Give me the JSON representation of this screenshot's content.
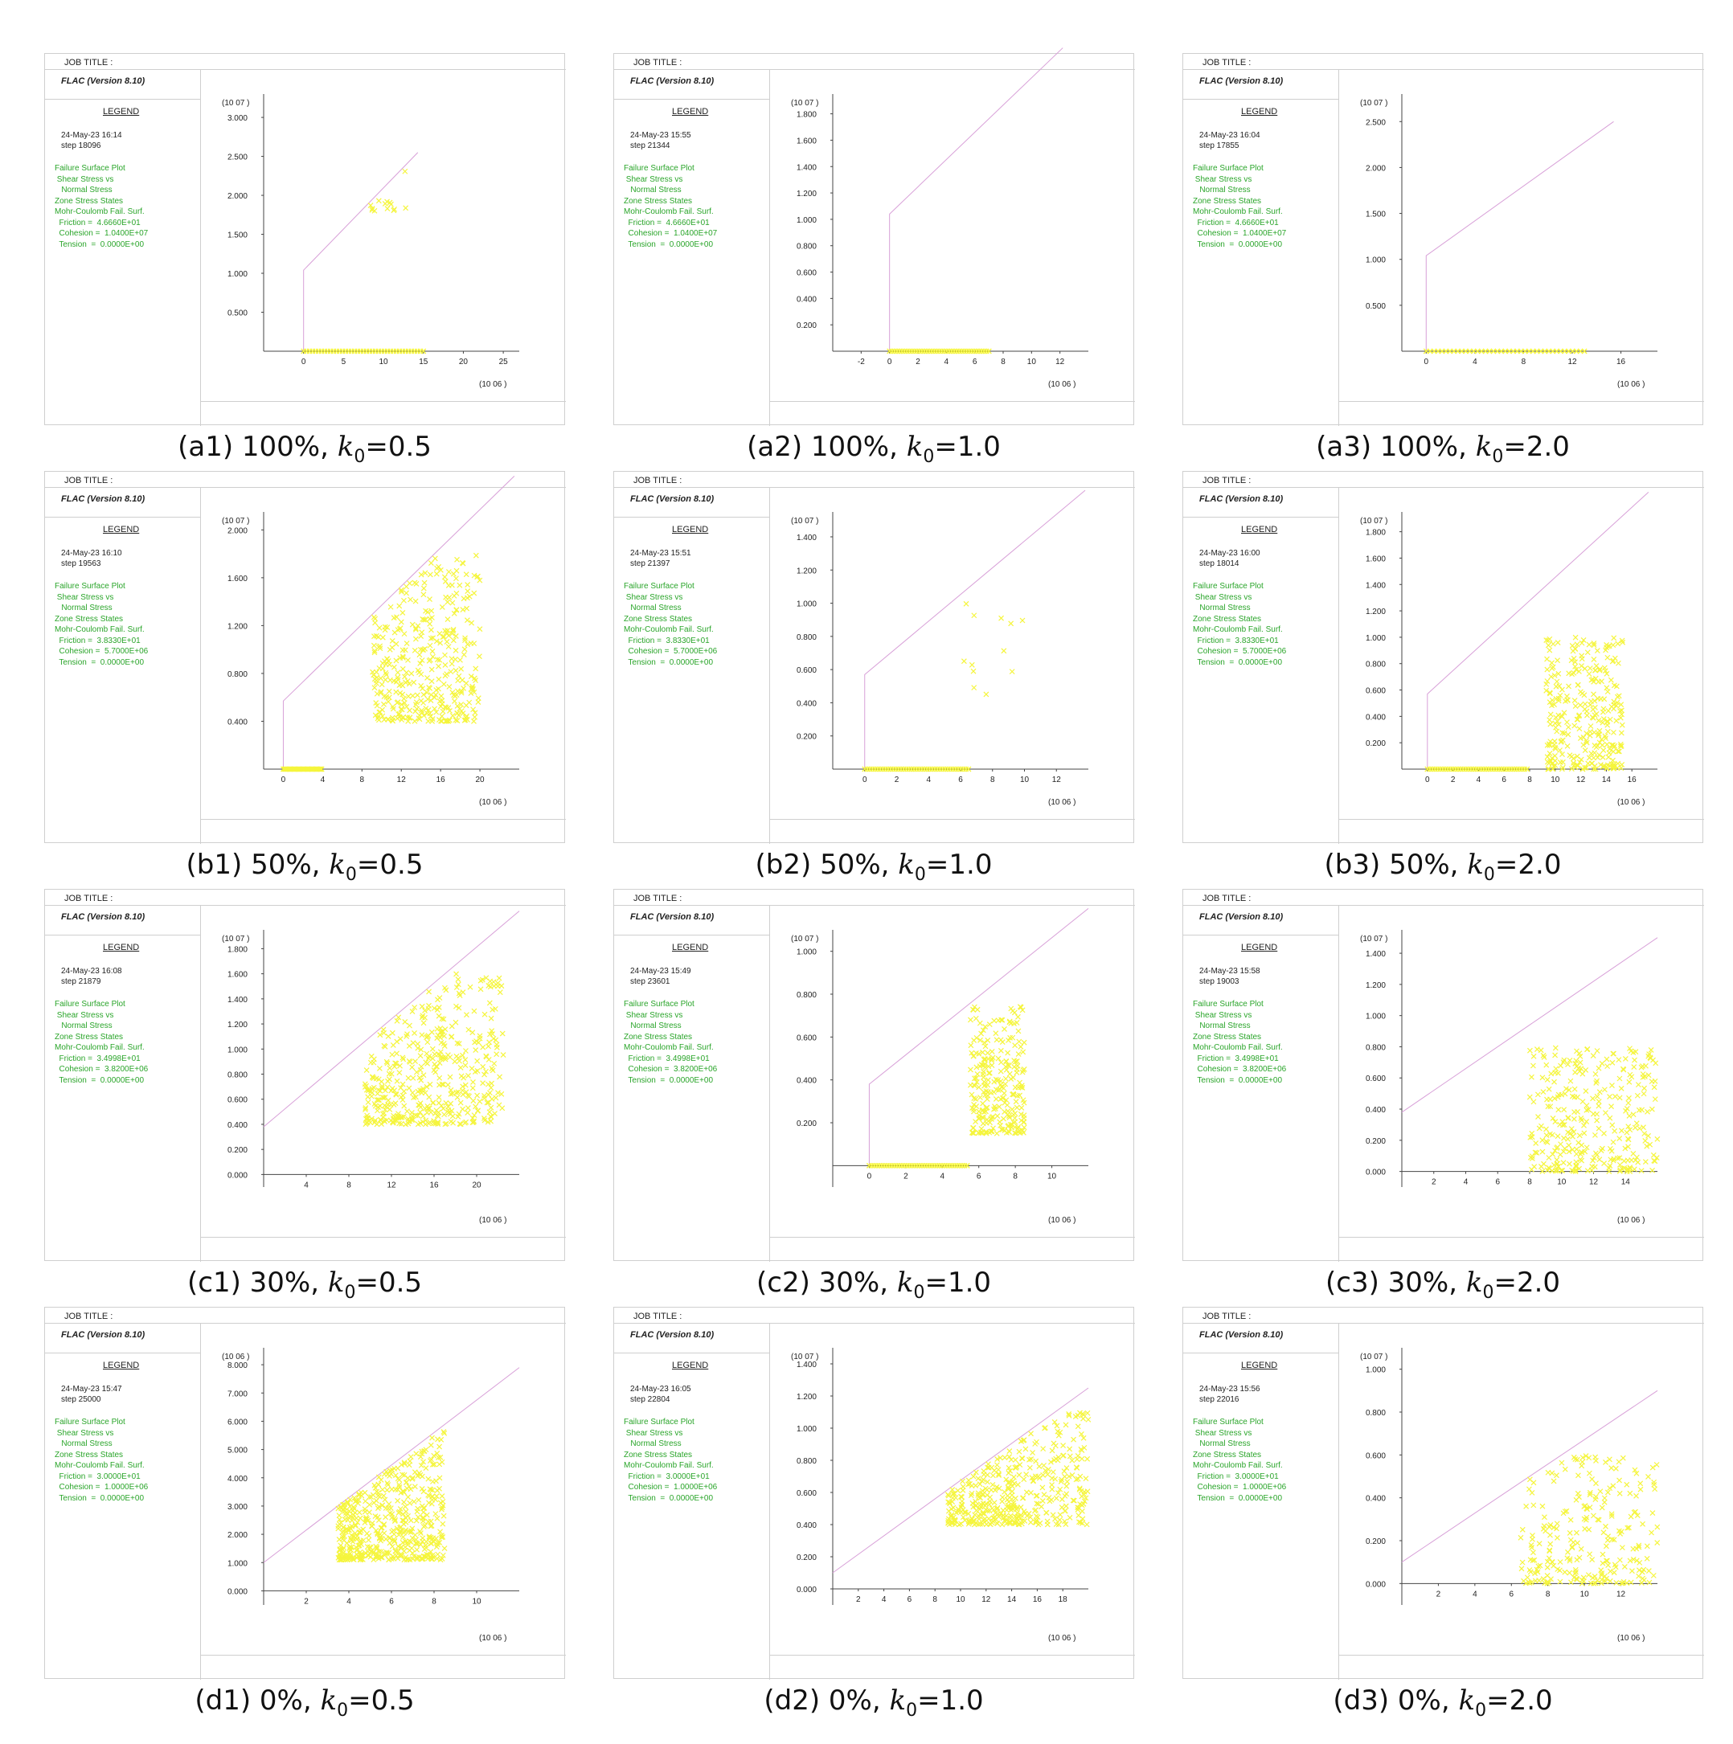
{
  "common": {
    "job_title": "JOB TITLE :",
    "app": "FLAC (Version 8.10)",
    "legend": "LEGEND",
    "lines": [
      "Failure Surface Plot",
      " Shear Stress vs",
      "   Normal Stress",
      "Zone Stress States",
      "Mohr-Coulomb Fail. Surf."
    ],
    "colors": {
      "surface": "#d8a0d8",
      "points": "#f5f53c",
      "legend_text": "#2aa52a"
    }
  },
  "panels": [
    {
      "id": "a1",
      "date": "24-May-23  16:14",
      "step": "step     18096",
      "friction": "Friction =  4.6660E+01",
      "cohesion": "Cohesion =  1.0400E+07",
      "tension": "Tension  =  0.0000E+00",
      "caption_pre": "(a1) 100%, ",
      "caption_k": "k",
      "caption_sub": "0",
      "caption_post": "=0.5",
      "y_exp": "07",
      "x_exp": "06"
    },
    {
      "id": "a2",
      "date": "24-May-23  15:55",
      "step": "step     21344",
      "friction": "Friction =  4.6660E+01",
      "cohesion": "Cohesion =  1.0400E+07",
      "tension": "Tension  =  0.0000E+00",
      "caption_pre": "(a2) 100%, ",
      "caption_k": "k",
      "caption_sub": "0",
      "caption_post": "=1.0",
      "y_exp": "07",
      "x_exp": "06"
    },
    {
      "id": "a3",
      "date": "24-May-23  16:04",
      "step": "step     17855",
      "friction": "Friction =  4.6660E+01",
      "cohesion": "Cohesion =  1.0400E+07",
      "tension": "Tension  =  0.0000E+00",
      "caption_pre": "(a3) 100%, ",
      "caption_k": "k",
      "caption_sub": "0",
      "caption_post": "=2.0",
      "y_exp": "07",
      "x_exp": "06"
    },
    {
      "id": "b1",
      "date": "24-May-23  16:10",
      "step": "step     19563",
      "friction": "Friction =  3.8330E+01",
      "cohesion": "Cohesion =  5.7000E+06",
      "tension": "Tension  =  0.0000E+00",
      "caption_pre": "(b1) 50%, ",
      "caption_k": "k",
      "caption_sub": "0",
      "caption_post": "=0.5",
      "y_exp": "07",
      "x_exp": "06"
    },
    {
      "id": "b2",
      "date": "24-May-23  15:51",
      "step": "step     21397",
      "friction": "Friction =  3.8330E+01",
      "cohesion": "Cohesion =  5.7000E+06",
      "tension": "Tension  =  0.0000E+00",
      "caption_pre": "(b2) 50%, ",
      "caption_k": "k",
      "caption_sub": "0",
      "caption_post": "=1.0",
      "y_exp": "07",
      "x_exp": "06"
    },
    {
      "id": "b3",
      "date": "24-May-23  16:00",
      "step": "step     18014",
      "friction": "Friction =  3.8330E+01",
      "cohesion": "Cohesion =  5.7000E+06",
      "tension": "Tension  =  0.0000E+00",
      "caption_pre": "(b3) 50%, ",
      "caption_k": "k",
      "caption_sub": "0",
      "caption_post": "=2.0",
      "y_exp": "07",
      "x_exp": "06"
    },
    {
      "id": "c1",
      "date": "24-May-23  16:08",
      "step": "step     21879",
      "friction": "Friction =  3.4998E+01",
      "cohesion": "Cohesion =  3.8200E+06",
      "tension": "Tension  =  0.0000E+00",
      "caption_pre": "(c1) 30%, ",
      "caption_k": "k",
      "caption_sub": "0",
      "caption_post": "=0.5",
      "y_exp": "07",
      "x_exp": "06"
    },
    {
      "id": "c2",
      "date": "24-May-23  15:49",
      "step": "step     23601",
      "friction": "Friction =  3.4998E+01",
      "cohesion": "Cohesion =  3.8200E+06",
      "tension": "Tension  =  0.0000E+00",
      "caption_pre": "(c2) 30%, ",
      "caption_k": "k",
      "caption_sub": "0",
      "caption_post": "=1.0",
      "y_exp": "07",
      "x_exp": "06"
    },
    {
      "id": "c3",
      "date": "24-May-23  15:58",
      "step": "step     19003",
      "friction": "Friction =  3.4998E+01",
      "cohesion": "Cohesion =  3.8200E+06",
      "tension": "Tension  =  0.0000E+00",
      "caption_pre": "(c3) 30%, ",
      "caption_k": "k",
      "caption_sub": "0",
      "caption_post": "=2.0",
      "y_exp": "07",
      "x_exp": "06"
    },
    {
      "id": "d1",
      "date": "24-May-23  15:47",
      "step": "step     25000",
      "friction": "Friction =  3.0000E+01",
      "cohesion": "Cohesion =  1.0000E+06",
      "tension": "Tension  =  0.0000E+00",
      "caption_pre": "(d1) 0%, ",
      "caption_k": "k",
      "caption_sub": "0",
      "caption_post": "=0.5",
      "y_exp": "06",
      "x_exp": "06"
    },
    {
      "id": "d2",
      "date": "24-May-23  16:05",
      "step": "step     22804",
      "friction": "Friction =  3.0000E+01",
      "cohesion": "Cohesion =  1.0000E+06",
      "tension": "Tension  =  0.0000E+00",
      "caption_pre": "(d2) 0%, ",
      "caption_k": "k",
      "caption_sub": "0",
      "caption_post": "=1.0",
      "y_exp": "07",
      "x_exp": "06"
    },
    {
      "id": "d3",
      "date": "24-May-23  15:56",
      "step": "step     22016",
      "friction": "Friction =  3.0000E+01",
      "cohesion": "Cohesion =  1.0000E+06",
      "tension": "Tension  =  0.0000E+00",
      "caption_pre": "(d3) 0%, ",
      "caption_k": "k",
      "caption_sub": "0",
      "caption_post": "=2.0",
      "y_exp": "07",
      "x_exp": "06"
    }
  ],
  "chart_data": [
    {
      "type": "scatter",
      "panel": "a1",
      "xlim": [
        -5,
        27
      ],
      "ylim": [
        0,
        3.3
      ],
      "xticks": [
        0,
        5,
        10,
        15,
        20,
        25
      ],
      "xtick_labels": [
        "0",
        "5",
        "10",
        "15",
        "20",
        "25"
      ],
      "yticks": [
        0.5,
        1.0,
        1.5,
        2.0,
        2.5,
        3.0
      ],
      "ytick_labels": [
        "0.500",
        "1.000",
        "1.500",
        "2.000",
        "2.500",
        "3.000"
      ],
      "surface": [
        [
          0,
          0
        ],
        [
          0,
          1.04
        ],
        [
          14.3,
          2.55
        ]
      ],
      "axis_y": 0,
      "floor": [
        0,
        15
      ],
      "cloud": {
        "corner": [
          10.5,
          1.8
        ],
        "range": [
          5,
          0.9
        ],
        "n": 14
      }
    },
    {
      "type": "scatter",
      "panel": "a2",
      "xlim": [
        -4,
        14
      ],
      "ylim": [
        0,
        1.95
      ],
      "xticks": [
        -2,
        0,
        2,
        4,
        6,
        8,
        10,
        12
      ],
      "xtick_labels": [
        "-2",
        "0",
        "2",
        "4",
        "6",
        "8",
        "10",
        "12"
      ],
      "yticks": [
        0.2,
        0.4,
        0.6,
        0.8,
        1.0,
        1.2,
        1.4,
        1.6,
        1.8
      ],
      "ytick_labels": [
        "0.200",
        "0.400",
        "0.600",
        "0.800",
        "1.000",
        "1.200",
        "1.400",
        "1.600",
        "1.800"
      ],
      "surface": [
        [
          0,
          0
        ],
        [
          0,
          1.04
        ],
        [
          12.2,
          2.3
        ]
      ],
      "axis_y": 0,
      "floor": [
        0,
        7
      ],
      "cloud": null
    },
    {
      "type": "scatter",
      "panel": "a3",
      "xlim": [
        -2,
        19
      ],
      "ylim": [
        0,
        2.8
      ],
      "xticks": [
        0,
        4,
        8,
        12,
        16
      ],
      "xtick_labels": [
        "0",
        "4",
        "8",
        "12",
        "16"
      ],
      "yticks": [
        0.5,
        1.0,
        1.5,
        2.0,
        2.5
      ],
      "ytick_labels": [
        "0.500",
        "1.000",
        "1.500",
        "2.000",
        "2.500"
      ],
      "surface": [
        [
          0,
          0
        ],
        [
          0,
          1.04
        ],
        [
          15.4,
          2.5
        ]
      ],
      "axis_y": 0,
      "floor": [
        0,
        13
      ],
      "cloud": null
    },
    {
      "type": "scatter",
      "panel": "b1",
      "xlim": [
        -2,
        24
      ],
      "ylim": [
        0,
        2.15
      ],
      "xticks": [
        0,
        4,
        8,
        12,
        16,
        20
      ],
      "xtick_labels": [
        "0",
        "4",
        "8",
        "12",
        "16",
        "20"
      ],
      "yticks": [
        0.4,
        0.8,
        1.2,
        1.6,
        2.0
      ],
      "ytick_labels": [
        "0.400",
        "0.800",
        "1.200",
        "1.600",
        "2.000"
      ],
      "surface": [
        [
          0,
          0
        ],
        [
          0,
          0.57
        ],
        [
          23.5,
          2.45
        ]
      ],
      "axis_y": 0,
      "floor": [
        0,
        4
      ],
      "cloud": {
        "corner": [
          14.5,
          0.4
        ],
        "range": [
          11,
          1.4
        ],
        "n": 380
      }
    },
    {
      "type": "scatter",
      "panel": "b2",
      "xlim": [
        -2,
        14
      ],
      "ylim": [
        0,
        1.55
      ],
      "xticks": [
        0,
        2,
        4,
        6,
        8,
        10,
        12
      ],
      "xtick_labels": [
        "0",
        "2",
        "4",
        "6",
        "8",
        "10",
        "12"
      ],
      "yticks": [
        0.2,
        0.4,
        0.6,
        0.8,
        1.0,
        1.2,
        1.4
      ],
      "ytick_labels": [
        "0.200",
        "0.400",
        "0.600",
        "0.800",
        "1.000",
        "1.200",
        "1.400"
      ],
      "surface": [
        [
          0,
          0
        ],
        [
          0,
          0.57
        ],
        [
          13.8,
          1.68
        ]
      ],
      "axis_y": 0,
      "floor": [
        0,
        6.5
      ],
      "cloud": {
        "corner": [
          8,
          0.45
        ],
        "range": [
          4,
          0.6
        ],
        "n": 12
      }
    },
    {
      "type": "scatter",
      "panel": "b3",
      "xlim": [
        -2,
        18
      ],
      "ylim": [
        0,
        1.95
      ],
      "xticks": [
        0,
        2,
        4,
        6,
        8,
        10,
        12,
        14,
        16
      ],
      "xtick_labels": [
        "0",
        "2",
        "4",
        "6",
        "8",
        "10",
        "12",
        "14",
        "16"
      ],
      "yticks": [
        0.2,
        0.4,
        0.6,
        0.8,
        1.0,
        1.2,
        1.4,
        1.6,
        1.8
      ],
      "ytick_labels": [
        "0.200",
        "0.400",
        "0.600",
        "0.800",
        "1.000",
        "1.200",
        "1.400",
        "1.600",
        "1.800"
      ],
      "surface": [
        [
          0,
          0
        ],
        [
          0,
          0.57
        ],
        [
          17.3,
          2.1
        ]
      ],
      "axis_y": 0,
      "floor": [
        0,
        8
      ],
      "cloud": {
        "corner": [
          12.3,
          0.0
        ],
        "range": [
          6,
          1.0
        ],
        "n": 300
      }
    },
    {
      "type": "scatter",
      "panel": "c1",
      "xlim": [
        0,
        24
      ],
      "ylim": [
        -0.1,
        1.95
      ],
      "xticks": [
        4,
        8,
        12,
        16,
        20
      ],
      "xtick_labels": [
        "4",
        "8",
        "12",
        "16",
        "20"
      ],
      "yticks": [
        0,
        0.2,
        0.4,
        0.6,
        0.8,
        1.0,
        1.2,
        1.4,
        1.6,
        1.8
      ],
      "ytick_labels": [
        "0.000",
        "0.200",
        "0.400",
        "0.600",
        "0.800",
        "1.000",
        "1.200",
        "1.400",
        "1.600",
        "1.800"
      ],
      "surface": [
        [
          0,
          0.38
        ],
        [
          24,
          2.1
        ]
      ],
      "axis_y": 0,
      "floor": null,
      "cloud": {
        "corner": [
          16,
          0.4
        ],
        "range": [
          13,
          1.2
        ],
        "n": 450
      }
    },
    {
      "type": "scatter",
      "panel": "c2",
      "xlim": [
        -2,
        12
      ],
      "ylim": [
        -0.1,
        1.1
      ],
      "xticks": [
        0,
        2,
        4,
        6,
        8,
        10
      ],
      "xtick_labels": [
        "0",
        "2",
        "4",
        "6",
        "8",
        "10"
      ],
      "yticks": [
        0.2,
        0.4,
        0.6,
        0.8,
        1.0
      ],
      "ytick_labels": [
        "0.200",
        "0.400",
        "0.600",
        "0.800",
        "1.000"
      ],
      "surface": [
        [
          0,
          0
        ],
        [
          0,
          0.38
        ],
        [
          12,
          1.2
        ]
      ],
      "axis_y": 0,
      "floor": [
        0,
        5.5
      ],
      "cloud": {
        "corner": [
          7,
          0.15
        ],
        "range": [
          3,
          0.6
        ],
        "n": 260
      }
    },
    {
      "type": "scatter",
      "panel": "c3",
      "xlim": [
        0,
        16
      ],
      "ylim": [
        -0.1,
        1.55
      ],
      "xticks": [
        2,
        4,
        6,
        8,
        10,
        12,
        14
      ],
      "xtick_labels": [
        "2",
        "4",
        "6",
        "8",
        "10",
        "12",
        "14"
      ],
      "yticks": [
        0,
        0.2,
        0.4,
        0.6,
        0.8,
        1.0,
        1.2,
        1.4
      ],
      "ytick_labels": [
        "0.000",
        "0.200",
        "0.400",
        "0.600",
        "0.800",
        "1.000",
        "1.200",
        "1.400"
      ],
      "surface": [
        [
          0,
          0.38
        ],
        [
          16,
          1.5
        ]
      ],
      "axis_y": 0,
      "floor": null,
      "cloud": {
        "corner": [
          12.5,
          0.0
        ],
        "range": [
          9,
          0.8
        ],
        "n": 350
      }
    },
    {
      "type": "scatter",
      "panel": "d1",
      "xlim": [
        0,
        12
      ],
      "ylim": [
        -0.5,
        8.6
      ],
      "xticks": [
        2,
        4,
        6,
        8,
        10
      ],
      "xtick_labels": [
        "2",
        "4",
        "6",
        "8",
        "10"
      ],
      "yticks": [
        0,
        1,
        2,
        3,
        4,
        5,
        6,
        7,
        8
      ],
      "ytick_labels": [
        "0.000",
        "1.000",
        "2.000",
        "3.000",
        "4.000",
        "5.000",
        "6.000",
        "7.000",
        "8.000"
      ],
      "surface": [
        [
          0,
          1.0
        ],
        [
          12,
          7.9
        ]
      ],
      "axis_y": 0,
      "floor": null,
      "cloud": {
        "corner": [
          6,
          1.1
        ],
        "range": [
          5,
          5.5
        ],
        "n": 500
      }
    },
    {
      "type": "scatter",
      "panel": "d2",
      "xlim": [
        0,
        20
      ],
      "ylim": [
        -0.1,
        1.5
      ],
      "xticks": [
        2,
        4,
        6,
        8,
        10,
        12,
        14,
        16,
        18
      ],
      "xtick_labels": [
        "2",
        "4",
        "6",
        "8",
        "10",
        "12",
        "14",
        "16",
        "18"
      ],
      "yticks": [
        0,
        0.2,
        0.4,
        0.6,
        0.8,
        1.0,
        1.2,
        1.4
      ],
      "ytick_labels": [
        "0.000",
        "0.200",
        "0.400",
        "0.600",
        "0.800",
        "1.000",
        "1.200",
        "1.400"
      ],
      "surface": [
        [
          0,
          0.1
        ],
        [
          20,
          1.25
        ]
      ],
      "axis_y": 0,
      "floor": null,
      "cloud": {
        "corner": [
          16.5,
          0.4
        ],
        "range": [
          15,
          0.7
        ],
        "n": 550
      }
    },
    {
      "type": "scatter",
      "panel": "d3",
      "xlim": [
        0,
        14
      ],
      "ylim": [
        -0.1,
        1.1
      ],
      "xticks": [
        2,
        4,
        6,
        8,
        10,
        12
      ],
      "xtick_labels": [
        "2",
        "4",
        "6",
        "8",
        "10",
        "12"
      ],
      "yticks": [
        0,
        0.2,
        0.4,
        0.6,
        0.8,
        1.0
      ],
      "ytick_labels": [
        "0.000",
        "0.200",
        "0.400",
        "0.600",
        "0.800",
        "1.000"
      ],
      "surface": [
        [
          0,
          0.1
        ],
        [
          14,
          0.9
        ]
      ],
      "axis_y": 0,
      "floor": null,
      "cloud": {
        "corner": [
          12.5,
          0.0
        ],
        "range": [
          12,
          0.6
        ],
        "n": 400
      }
    }
  ]
}
